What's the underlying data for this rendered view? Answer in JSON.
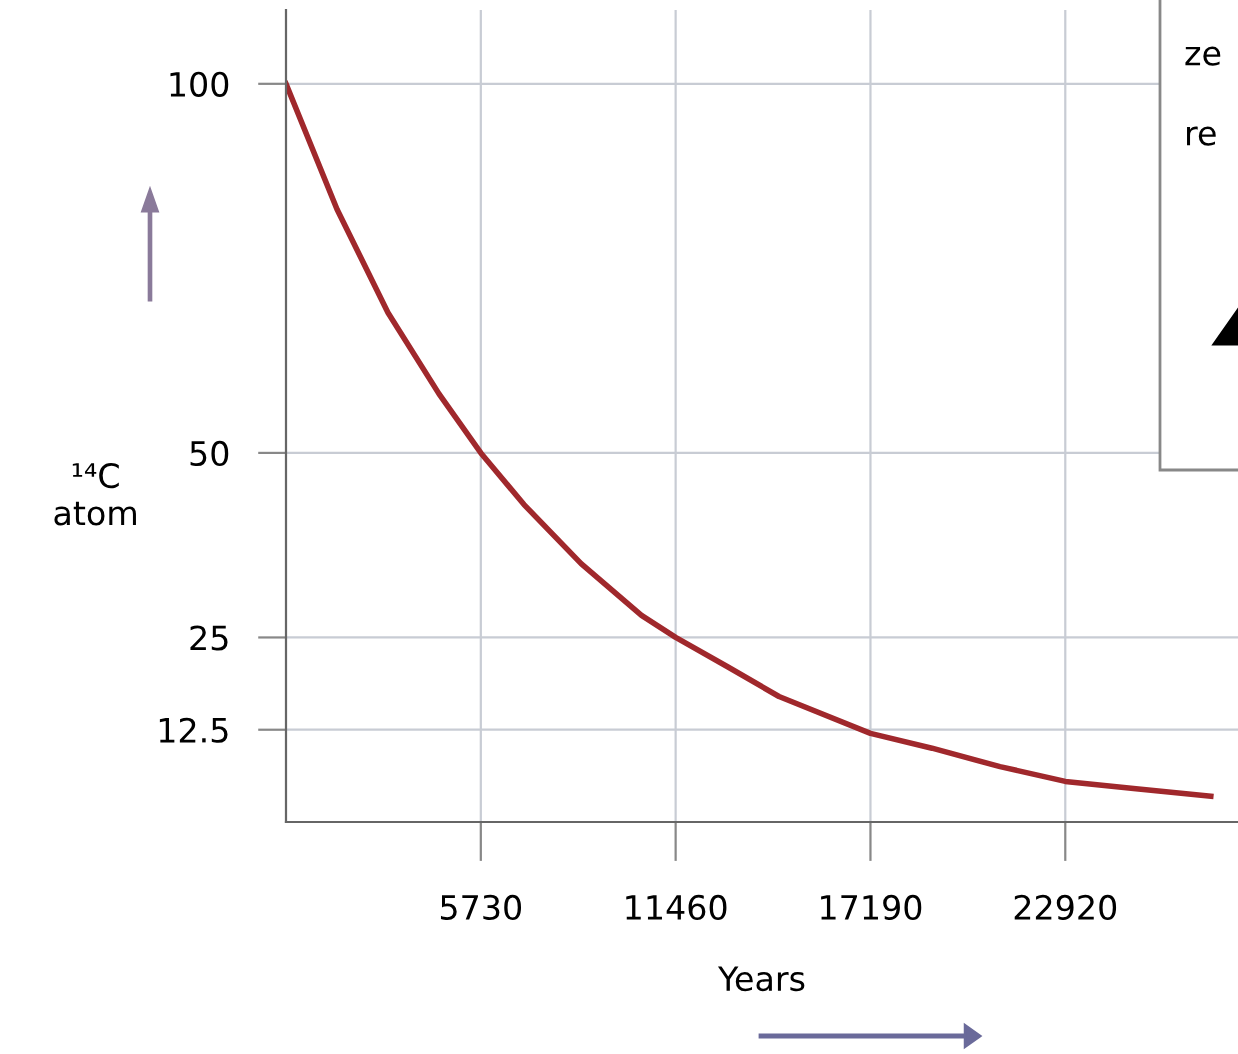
{
  "chart_data": {
    "type": "line",
    "xlabel": "Years",
    "ylabel": "¹⁴C\natom",
    "x": [
      0,
      1500,
      3000,
      4500,
      5730,
      7000,
      8680,
      10456,
      11460,
      13000,
      14500,
      17190,
      19000,
      21000,
      22920,
      25000,
      27200
    ],
    "series": [
      {
        "color": "#a0282c",
        "values": [
          100,
          83,
          69,
          58,
          50,
          43,
          35,
          28,
          25,
          21,
          17,
          12,
          10,
          7.5,
          5.5,
          4.5,
          3.5
        ]
      }
    ],
    "xlim": [
      0,
      28000
    ],
    "ylim": [
      0,
      110
    ],
    "xticks": [
      5730,
      11460,
      17190,
      22920
    ],
    "yticks": [
      12.5,
      25,
      50,
      100
    ],
    "grid": true,
    "marker": "none",
    "line_style": "solid",
    "annotations": [
      "ze",
      "re"
    ]
  }
}
